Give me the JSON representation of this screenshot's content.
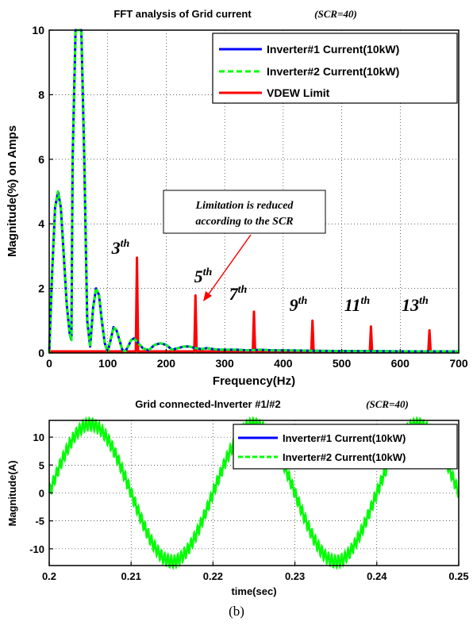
{
  "chart_data": [
    {
      "type": "line",
      "title": "FFT analysis of Grid current",
      "subtitle": "(SCR=40)",
      "xlabel": "Frequency(Hz)",
      "ylabel": "Magnitude(%)  on Amps",
      "xlim": [
        0,
        700
      ],
      "ylim": [
        0,
        10
      ],
      "xticks": [
        "0",
        "100",
        "200",
        "300",
        "400",
        "500",
        "600",
        "700"
      ],
      "yticks": [
        "0",
        "2",
        "4",
        "6",
        "8",
        "10"
      ],
      "grid": true,
      "legend_position": "top-right",
      "series": [
        {
          "name": "Inverter#1 Current(10kW)",
          "style": "solid",
          "color": "#0000ff",
          "x": [
            0,
            5,
            10,
            15,
            20,
            25,
            30,
            35,
            38,
            40,
            45,
            50,
            55,
            60,
            65,
            70,
            75,
            80,
            85,
            90,
            95,
            100,
            105,
            110,
            115,
            120,
            125,
            130,
            135,
            140,
            145,
            150,
            160,
            170,
            180,
            190,
            200,
            210,
            220,
            230,
            240,
            250,
            260,
            270,
            280,
            290,
            300,
            320,
            340,
            360,
            380,
            400,
            450,
            500,
            550,
            600,
            650,
            700
          ],
          "y": [
            0.0,
            2.5,
            4.5,
            5.0,
            4.5,
            3.0,
            1.5,
            0.6,
            0.4,
            6.0,
            10.0,
            10.0,
            10.0,
            6.0,
            1.0,
            0.2,
            1.4,
            2.0,
            1.8,
            1.0,
            0.3,
            0.05,
            0.4,
            0.8,
            0.7,
            0.4,
            0.1,
            0.05,
            0.2,
            0.4,
            0.45,
            0.35,
            0.15,
            0.08,
            0.25,
            0.3,
            0.25,
            0.1,
            0.15,
            0.2,
            0.2,
            0.15,
            0.12,
            0.15,
            0.12,
            0.1,
            0.1,
            0.1,
            0.08,
            0.1,
            0.08,
            0.08,
            0.07,
            0.06,
            0.06,
            0.05,
            0.05,
            0.05
          ]
        },
        {
          "name": "Inverter#2 Current(10kW)",
          "style": "dashed",
          "color": "#00ff00",
          "x": [
            0,
            5,
            10,
            15,
            20,
            25,
            30,
            35,
            38,
            40,
            45,
            50,
            55,
            60,
            65,
            70,
            75,
            80,
            85,
            90,
            95,
            100,
            105,
            110,
            115,
            120,
            125,
            130,
            135,
            140,
            145,
            150,
            160,
            170,
            180,
            190,
            200,
            210,
            220,
            230,
            240,
            250,
            260,
            270,
            280,
            290,
            300,
            320,
            340,
            360,
            380,
            400,
            450,
            500,
            550,
            600,
            650,
            700
          ],
          "y": [
            0.0,
            2.5,
            4.5,
            5.0,
            4.5,
            3.0,
            1.5,
            0.6,
            0.4,
            6.0,
            10.0,
            10.0,
            10.0,
            6.0,
            1.0,
            0.2,
            1.4,
            2.0,
            1.8,
            1.0,
            0.3,
            0.05,
            0.4,
            0.8,
            0.7,
            0.4,
            0.1,
            0.05,
            0.2,
            0.4,
            0.45,
            0.35,
            0.15,
            0.08,
            0.25,
            0.3,
            0.25,
            0.1,
            0.15,
            0.2,
            0.2,
            0.15,
            0.12,
            0.15,
            0.12,
            0.1,
            0.1,
            0.1,
            0.08,
            0.1,
            0.08,
            0.08,
            0.07,
            0.06,
            0.06,
            0.05,
            0.05,
            0.05
          ]
        },
        {
          "name": "VDEW Limit",
          "style": "solid",
          "color": "#ff0000",
          "baseline": 0.05,
          "spikes": [
            {
              "x": 150,
              "y": 2.95,
              "label": "3",
              "suffix": "th"
            },
            {
              "x": 250,
              "y": 1.78,
              "label": "5",
              "suffix": "th"
            },
            {
              "x": 350,
              "y": 1.28,
              "label": "7",
              "suffix": "th"
            },
            {
              "x": 450,
              "y": 1.0,
              "label": "9",
              "suffix": "th"
            },
            {
              "x": 550,
              "y": 0.82,
              "label": "11",
              "suffix": "th"
            },
            {
              "x": 650,
              "y": 0.7,
              "label": "13",
              "suffix": "th"
            }
          ]
        }
      ],
      "annotation": {
        "lines": [
          "Limitation is reduced",
          "according to the SCR"
        ]
      }
    },
    {
      "type": "line",
      "title": "Grid connected-Inverter #1/#2",
      "subtitle": "(SCR=40)",
      "xlabel": "time(sec)",
      "ylabel": "Magnitude(A)",
      "xlim": [
        0.2,
        0.25
      ],
      "ylim": [
        -13,
        13
      ],
      "xticks": [
        "0.2",
        "0.21",
        "0.22",
        "0.23",
        "0.24",
        "0.25"
      ],
      "yticks": [
        "-10",
        "-5",
        "0",
        "5",
        "10"
      ],
      "grid": true,
      "legend_position": "top-right",
      "frequency_hz": 50,
      "amplitude": 12.3,
      "ripple": 1.1,
      "series": [
        {
          "name": "Inverter#1 Current(10kW)",
          "style": "solid",
          "color": "#0000ff"
        },
        {
          "name": "Inverter#2 Current(10kW)",
          "style": "dashed",
          "color": "#00ff00"
        }
      ]
    }
  ],
  "caption": "(b)"
}
